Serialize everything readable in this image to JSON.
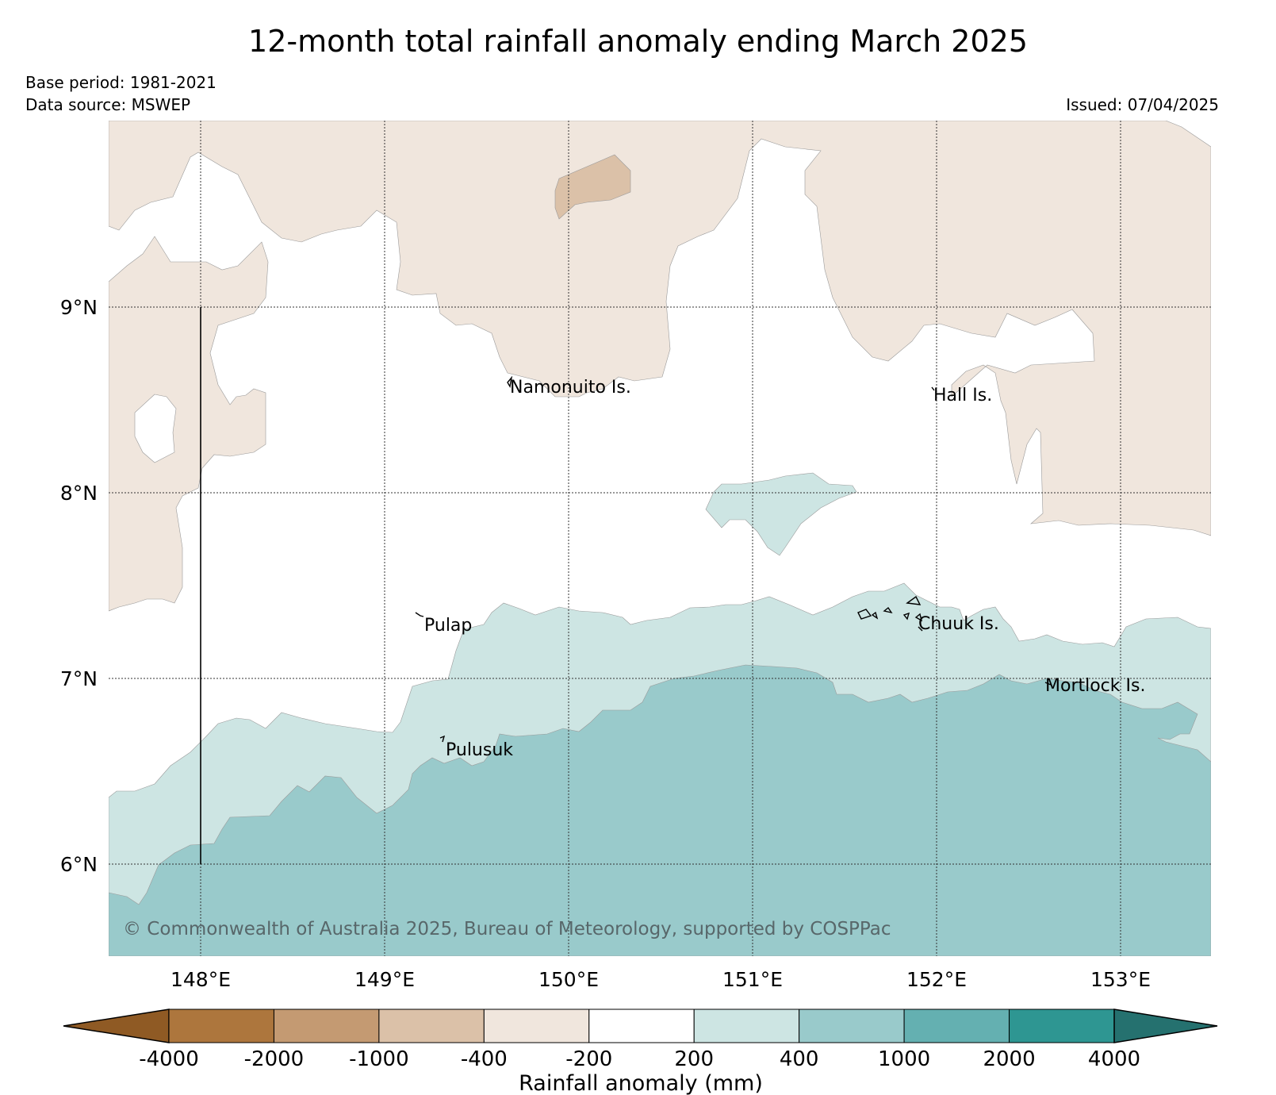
{
  "title": "12-month total rainfall anomaly ending March 2025",
  "base_period": "Base period: 1981-2021",
  "data_source": "Data source: MSWEP",
  "issued": "Issued: 07/04/2025",
  "latitude_labels": [
    "9°N",
    "8°N",
    "7°N",
    "6°N"
  ],
  "longitude_labels": [
    "148°E",
    "149°E",
    "150°E",
    "151°E",
    "152°E",
    "153°E"
  ],
  "place_labels": [
    "Namonuito Is.",
    "Hall Is.",
    "Pulap",
    "Chuuk Is.",
    "Mortlock Is.",
    "Pulusuk"
  ],
  "copyright": "© Commonwealth of Australia 2025, Bureau of Meteorology, supported by COSPPac",
  "colorbar": {
    "title": "Rainfall anomaly (mm)",
    "tick_labels": [
      "-4000",
      "-2000",
      "-1000",
      "-400",
      "-200",
      "200",
      "400",
      "1000",
      "2000",
      "4000"
    ],
    "colors": [
      "#8f5a24",
      "#ad763d",
      "#c49a72",
      "#dbc1a8",
      "#f0e6dd",
      "#ffffff",
      "#cde5e3",
      "#99cacb",
      "#64b0b1",
      "#2e9692",
      "#25716f"
    ]
  },
  "colors": {
    "dry_200_400": "#f0e6dd",
    "dry_400_1000": "#dbc1a8",
    "wet_200_400": "#cde5e3",
    "wet_400_1000": "#99cacb"
  }
}
